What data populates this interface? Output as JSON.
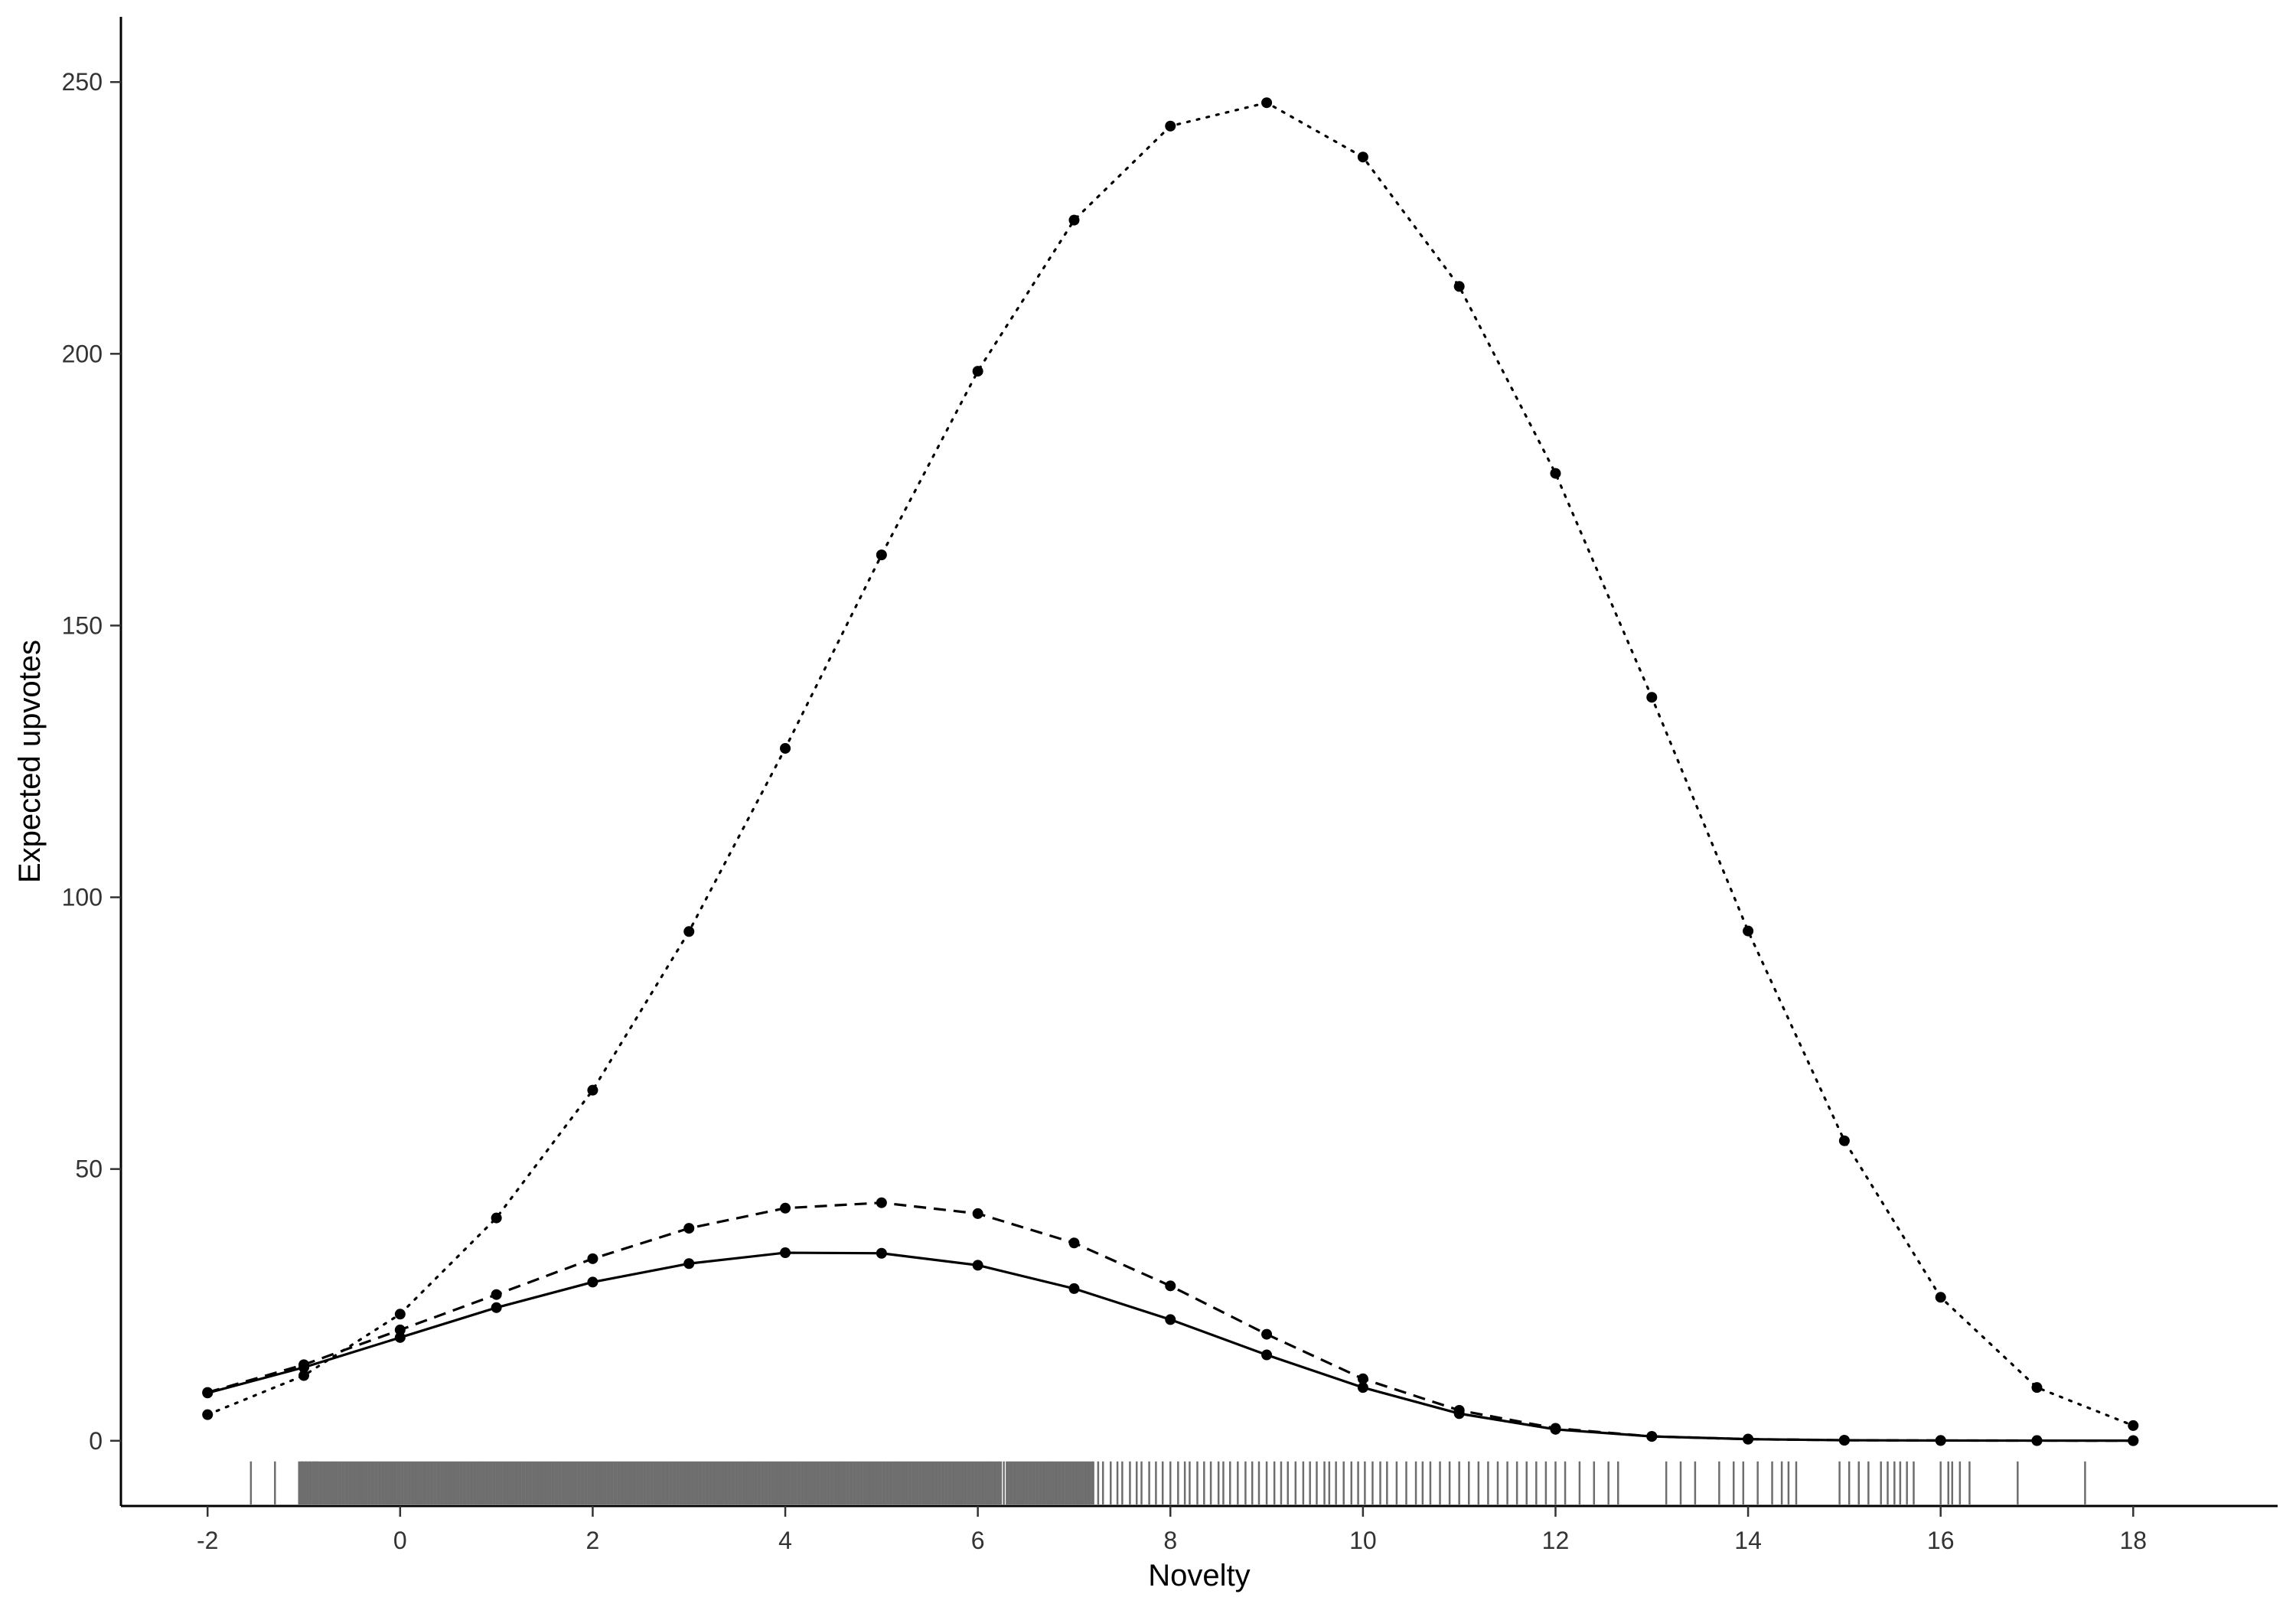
{
  "chart_data": {
    "type": "line",
    "title": "",
    "xlabel": "Novelty",
    "ylabel": "Expected upvotes",
    "xlim": [
      -2.9,
      19.5
    ],
    "ylim": [
      -12,
      262
    ],
    "x_ticks": [
      -2,
      0,
      2,
      4,
      6,
      8,
      10,
      12,
      14,
      16,
      18
    ],
    "y_ticks": [
      0,
      50,
      100,
      150,
      200,
      250
    ],
    "grid": false,
    "legend": "none",
    "x": [
      -2,
      -1,
      0,
      1,
      2,
      3,
      4,
      5,
      6,
      7,
      8,
      9,
      10,
      11,
      12,
      13,
      14,
      15,
      16,
      17,
      18
    ],
    "series": [
      {
        "line_style": "solid",
        "values": [
          8.8,
          13.5,
          19.0,
          24.5,
          29.2,
          32.6,
          34.6,
          34.5,
          32.3,
          28.0,
          22.3,
          15.8,
          9.8,
          5.0,
          2.1,
          0.8,
          0.3,
          0.1,
          0.05,
          0.03,
          0.02
        ]
      },
      {
        "line_style": "dashed",
        "values": [
          8.9,
          14.0,
          20.4,
          26.9,
          33.5,
          39.1,
          42.8,
          43.8,
          41.8,
          36.4,
          28.5,
          19.6,
          11.4,
          5.6,
          2.3,
          0.8,
          0.3,
          0.1,
          0.05,
          0.03,
          0.02
        ]
      },
      {
        "line_style": "dotted",
        "values": [
          4.8,
          12.0,
          23.3,
          41.0,
          64.5,
          93.7,
          127.4,
          163.0,
          196.8,
          224.6,
          241.9,
          246.2,
          236.2,
          212.4,
          178.0,
          136.8,
          93.8,
          55.2,
          26.4,
          9.8,
          2.8
        ]
      }
    ],
    "rug": {
      "color": "#6e6e6e",
      "dense_ranges": [
        [
          -1.05,
          6.25
        ],
        [
          6.3,
          7.2
        ]
      ],
      "values": [
        -1.55,
        -1.3,
        -1.02,
        -0.98,
        -0.94,
        -0.9,
        -0.87,
        6.27,
        7.25,
        7.3,
        7.38,
        7.45,
        7.5,
        7.58,
        7.65,
        7.7,
        7.78,
        7.85,
        7.92,
        8.0,
        8.08,
        8.15,
        8.2,
        8.28,
        8.35,
        8.42,
        8.5,
        8.55,
        8.62,
        8.7,
        8.78,
        8.85,
        8.92,
        9.0,
        9.08,
        9.15,
        9.22,
        9.3,
        9.38,
        9.45,
        9.52,
        9.6,
        9.65,
        9.72,
        9.8,
        9.88,
        9.95,
        10.02,
        10.1,
        10.18,
        10.25,
        10.35,
        10.45,
        10.55,
        10.62,
        10.7,
        10.8,
        10.9,
        11.0,
        11.1,
        11.2,
        11.3,
        11.4,
        11.5,
        11.6,
        11.7,
        11.8,
        11.9,
        12.0,
        12.1,
        12.25,
        12.4,
        12.55,
        12.65,
        13.15,
        13.3,
        13.45,
        13.7,
        13.85,
        13.95,
        14.1,
        14.25,
        14.35,
        14.42,
        14.5,
        14.95,
        15.05,
        15.15,
        15.25,
        15.38,
        15.45,
        15.52,
        15.58,
        15.65,
        15.72,
        16.0,
        16.08,
        16.12,
        16.2,
        16.3,
        16.8,
        17.5
      ]
    }
  }
}
